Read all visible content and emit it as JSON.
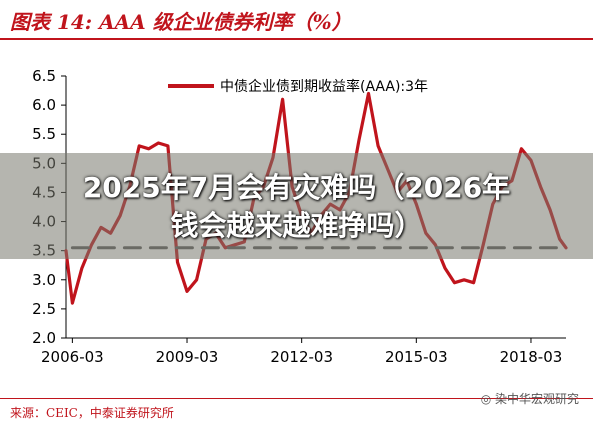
{
  "header": {
    "title": "图表 14:  AAA 级企业债券利率（%）"
  },
  "footer": {
    "source": "来源：CEIC，中泰证券研究所",
    "watermark": "染中华宏观研究"
  },
  "overlay": {
    "line1": "2025年7月会有灾难吗（2026年",
    "line2": "钱会越来越难挣吗）"
  },
  "chart_data": {
    "type": "line",
    "title": "",
    "xlabel": "",
    "ylabel": "",
    "ylim": [
      2.0,
      6.5
    ],
    "yticks": [
      "2.0",
      "2.5",
      "3.0",
      "3.5",
      "4.0",
      "4.5",
      "5.0",
      "5.5",
      "6.0",
      "6.5"
    ],
    "xticks": [
      "2006-03",
      "2009-03",
      "2012-03",
      "2015-03",
      "2018-03"
    ],
    "xrange": [
      "2006-01",
      "2019-02"
    ],
    "legend_position": "top-right",
    "series": [
      {
        "name": "中债企业债到期收益率(AAA):3年",
        "color": "#c0141c",
        "points": [
          [
            "2006-01",
            3.5
          ],
          [
            "2006-03",
            2.6
          ],
          [
            "2006-06",
            3.2
          ],
          [
            "2006-09",
            3.6
          ],
          [
            "2006-12",
            3.9
          ],
          [
            "2007-03",
            3.8
          ],
          [
            "2007-06",
            4.1
          ],
          [
            "2007-09",
            4.6
          ],
          [
            "2007-12",
            5.3
          ],
          [
            "2008-03",
            5.25
          ],
          [
            "2008-06",
            5.35
          ],
          [
            "2008-09",
            5.3
          ],
          [
            "2008-12",
            3.3
          ],
          [
            "2009-03",
            2.8
          ],
          [
            "2009-06",
            3.0
          ],
          [
            "2009-09",
            3.7
          ],
          [
            "2009-12",
            3.8
          ],
          [
            "2010-03",
            3.55
          ],
          [
            "2010-06",
            3.6
          ],
          [
            "2010-09",
            3.65
          ],
          [
            "2010-12",
            4.4
          ],
          [
            "2011-03",
            4.6
          ],
          [
            "2011-06",
            5.1
          ],
          [
            "2011-09",
            6.1
          ],
          [
            "2011-12",
            4.6
          ],
          [
            "2012-03",
            4.1
          ],
          [
            "2012-06",
            3.8
          ],
          [
            "2012-09",
            4.1
          ],
          [
            "2012-12",
            4.3
          ],
          [
            "2013-03",
            4.2
          ],
          [
            "2013-06",
            4.5
          ],
          [
            "2013-09",
            5.4
          ],
          [
            "2013-12",
            6.2
          ],
          [
            "2014-03",
            5.3
          ],
          [
            "2014-06",
            4.9
          ],
          [
            "2014-09",
            4.5
          ],
          [
            "2014-12",
            4.7
          ],
          [
            "2015-03",
            4.3
          ],
          [
            "2015-06",
            3.8
          ],
          [
            "2015-09",
            3.6
          ],
          [
            "2015-12",
            3.2
          ],
          [
            "2016-03",
            2.95
          ],
          [
            "2016-06",
            3.0
          ],
          [
            "2016-09",
            2.95
          ],
          [
            "2016-12",
            3.6
          ],
          [
            "2017-03",
            4.3
          ],
          [
            "2017-06",
            4.6
          ],
          [
            "2017-09",
            4.7
          ],
          [
            "2017-12",
            5.25
          ],
          [
            "2018-03",
            5.05
          ],
          [
            "2018-06",
            4.6
          ],
          [
            "2018-09",
            4.2
          ],
          [
            "2018-12",
            3.7
          ],
          [
            "2019-02",
            3.55
          ]
        ]
      },
      {
        "name": "",
        "color": "#595959",
        "dashed": true,
        "points": [
          [
            "2006-03",
            3.55
          ],
          [
            "2019-02",
            3.55
          ]
        ]
      }
    ]
  }
}
